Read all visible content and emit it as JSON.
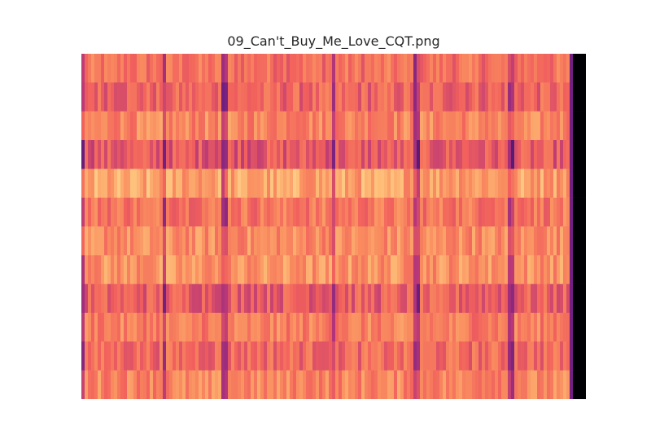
{
  "chart_data": {
    "type": "heatmap",
    "title": "09_Can't_Buy_Me_Love_CQT.png",
    "xlabel": "",
    "ylabel": "",
    "colormap": "magma",
    "grid": false,
    "legend": "none",
    "rows": 12,
    "cols": 620,
    "silence_tail_start": 0.963,
    "dark_columns": [
      0.0,
      0.161,
      0.282,
      0.497,
      0.663,
      0.847
    ]
  }
}
